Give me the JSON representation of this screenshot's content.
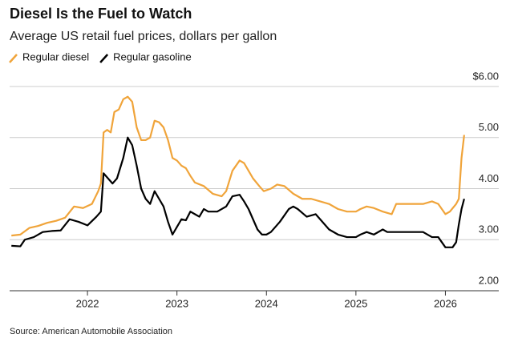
{
  "chart_data": {
    "type": "line",
    "title": "Diesel Is the Fuel to Watch",
    "subtitle": "Average US retail fuel prices, dollars per gallon",
    "source": "Source: American Automobile Association",
    "xlim": [
      2021.13,
      2026.22
    ],
    "xticks": [
      2022,
      2023,
      2024,
      2025,
      2026
    ],
    "ylim": [
      2,
      6
    ],
    "yticks": [
      {
        "value": 2,
        "label": "2.00"
      },
      {
        "value": 3,
        "label": "3.00"
      },
      {
        "value": 4,
        "label": "4.00"
      },
      {
        "value": 5,
        "label": "5.00"
      },
      {
        "value": 6,
        "label": "$6.00"
      }
    ],
    "grid": true,
    "series": [
      {
        "name": "Regular diesel",
        "color": "#f0a43a",
        "x": [
          2021.15,
          2021.25,
          2021.35,
          2021.45,
          2021.55,
          2021.65,
          2021.75,
          2021.85,
          2021.95,
          2022.05,
          2022.12,
          2022.15,
          2022.18,
          2022.22,
          2022.26,
          2022.3,
          2022.35,
          2022.4,
          2022.45,
          2022.5,
          2022.55,
          2022.6,
          2022.65,
          2022.7,
          2022.75,
          2022.8,
          2022.85,
          2022.9,
          2022.95,
          2023.0,
          2023.05,
          2023.1,
          2023.15,
          2023.2,
          2023.3,
          2023.4,
          2023.5,
          2023.55,
          2023.62,
          2023.7,
          2023.75,
          2023.8,
          2023.85,
          2023.92,
          2023.97,
          2024.05,
          2024.12,
          2024.2,
          2024.3,
          2024.4,
          2024.5,
          2024.6,
          2024.7,
          2024.8,
          2024.9,
          2025.0,
          2025.05,
          2025.12,
          2025.2,
          2025.3,
          2025.4,
          2025.45,
          2025.55,
          2025.65,
          2025.75,
          2025.85,
          2025.92,
          2026.0,
          2026.05,
          2026.12,
          2026.15,
          2026.18,
          2026.21
        ],
        "values": [
          3.08,
          3.1,
          3.23,
          3.27,
          3.33,
          3.37,
          3.43,
          3.65,
          3.62,
          3.7,
          3.95,
          4.1,
          5.1,
          5.15,
          5.1,
          5.5,
          5.55,
          5.75,
          5.8,
          5.7,
          5.2,
          4.95,
          4.95,
          5.0,
          5.33,
          5.3,
          5.2,
          4.95,
          4.6,
          4.55,
          4.45,
          4.4,
          4.25,
          4.12,
          4.05,
          3.9,
          3.85,
          3.95,
          4.35,
          4.55,
          4.5,
          4.35,
          4.2,
          4.05,
          3.95,
          4.0,
          4.08,
          4.05,
          3.9,
          3.8,
          3.8,
          3.75,
          3.7,
          3.6,
          3.55,
          3.55,
          3.6,
          3.65,
          3.62,
          3.55,
          3.5,
          3.7,
          3.7,
          3.7,
          3.7,
          3.75,
          3.7,
          3.5,
          3.55,
          3.7,
          3.8,
          4.6,
          5.05
        ]
      },
      {
        "name": "Regular gasoline",
        "color": "#000000",
        "x": [
          2021.15,
          2021.25,
          2021.3,
          2021.4,
          2021.5,
          2021.6,
          2021.7,
          2021.8,
          2021.9,
          2022.0,
          2022.1,
          2022.15,
          2022.18,
          2022.22,
          2022.28,
          2022.33,
          2022.4,
          2022.45,
          2022.5,
          2022.55,
          2022.6,
          2022.65,
          2022.7,
          2022.75,
          2022.8,
          2022.85,
          2022.9,
          2022.95,
          2023.0,
          2023.05,
          2023.1,
          2023.15,
          2023.2,
          2023.25,
          2023.3,
          2023.35,
          2023.45,
          2023.55,
          2023.62,
          2023.7,
          2023.75,
          2023.8,
          2023.85,
          2023.9,
          2023.95,
          2024.0,
          2024.05,
          2024.15,
          2024.25,
          2024.3,
          2024.35,
          2024.45,
          2024.55,
          2024.6,
          2024.7,
          2024.8,
          2024.9,
          2025.0,
          2025.05,
          2025.12,
          2025.2,
          2025.3,
          2025.35,
          2025.45,
          2025.55,
          2025.65,
          2025.75,
          2025.85,
          2025.92,
          2026.0,
          2026.08,
          2026.12,
          2026.15,
          2026.18,
          2026.21
        ],
        "values": [
          2.88,
          2.87,
          3.0,
          3.05,
          3.15,
          3.17,
          3.18,
          3.4,
          3.35,
          3.28,
          3.45,
          3.55,
          4.3,
          4.22,
          4.1,
          4.2,
          4.6,
          5.0,
          4.85,
          4.45,
          4.0,
          3.8,
          3.7,
          3.95,
          3.8,
          3.65,
          3.35,
          3.1,
          3.25,
          3.4,
          3.38,
          3.55,
          3.5,
          3.45,
          3.6,
          3.55,
          3.55,
          3.65,
          3.85,
          3.88,
          3.75,
          3.6,
          3.4,
          3.2,
          3.1,
          3.1,
          3.15,
          3.35,
          3.6,
          3.65,
          3.6,
          3.45,
          3.5,
          3.4,
          3.2,
          3.1,
          3.05,
          3.05,
          3.1,
          3.15,
          3.1,
          3.2,
          3.15,
          3.15,
          3.15,
          3.15,
          3.15,
          3.05,
          3.05,
          2.85,
          2.85,
          2.95,
          3.3,
          3.6,
          3.8
        ]
      }
    ]
  }
}
